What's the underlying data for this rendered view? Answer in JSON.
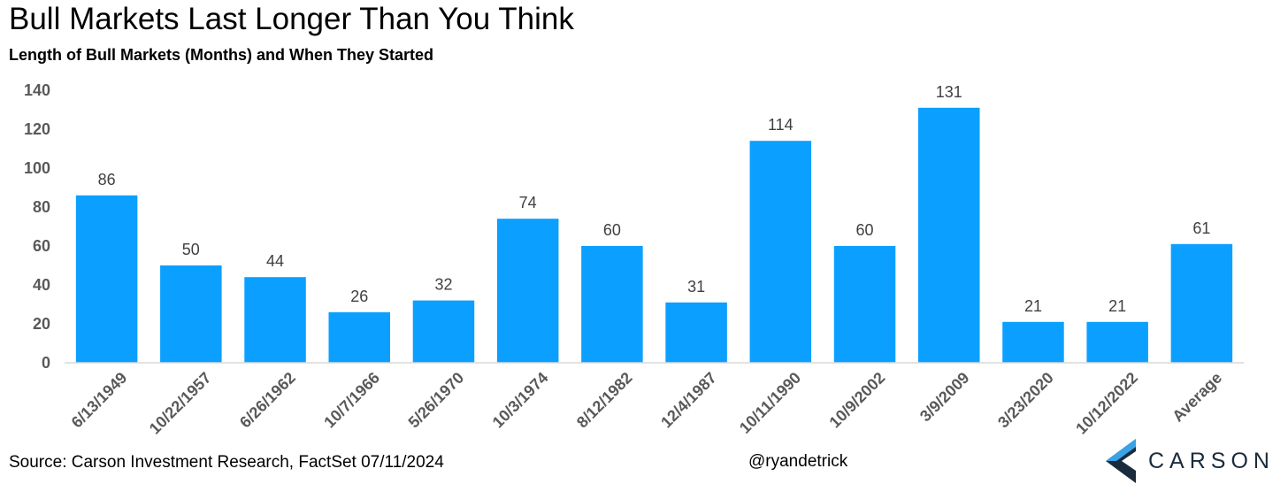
{
  "header": {
    "title": "Bull Markets Last Longer Than You Think",
    "subtitle": "Length of Bull Markets (Months) and When They Started"
  },
  "footer": {
    "source": "Source: Carson Investment Research, FactSet 07/11/2024",
    "handle": "@ryandetrick",
    "brand": "CARSON"
  },
  "colors": {
    "bar": "#0ba0ff",
    "axis_text": "#595959",
    "brand_dark": "#1a2b3c",
    "brand_light": "#3aa3e8"
  },
  "icons": {
    "logo": "carson-chevron-icon"
  },
  "chart_data": {
    "type": "bar",
    "title": "Bull Markets Last Longer Than You Think",
    "subtitle": "Length of Bull Markets (Months) and When They Started",
    "xlabel": "",
    "ylabel": "",
    "ylim": [
      0,
      140
    ],
    "yticks": [
      0,
      20,
      40,
      60,
      80,
      100,
      120,
      140
    ],
    "grid": false,
    "legend": "none",
    "categories": [
      "6/13/1949",
      "10/22/1957",
      "6/26/1962",
      "10/7/1966",
      "5/26/1970",
      "10/3/1974",
      "8/12/1982",
      "12/4/1987",
      "10/11/1990",
      "10/9/2002",
      "3/9/2009",
      "3/23/2020",
      "10/12/2022",
      "Average"
    ],
    "values": [
      86,
      50,
      44,
      26,
      32,
      74,
      60,
      31,
      114,
      60,
      131,
      21,
      21,
      61
    ]
  }
}
